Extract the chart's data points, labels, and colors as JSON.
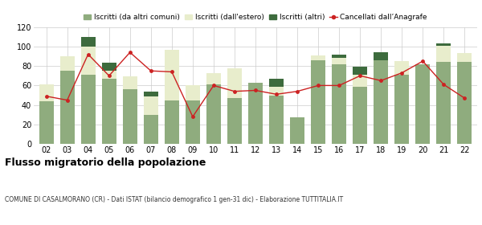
{
  "years": [
    "02",
    "03",
    "04",
    "05",
    "06",
    "07",
    "08",
    "09",
    "10",
    "11",
    "12",
    "13",
    "14",
    "15",
    "16",
    "17",
    "18",
    "19",
    "20",
    "21",
    "22"
  ],
  "iscritti_altri_comuni": [
    44,
    75,
    71,
    67,
    56,
    30,
    45,
    45,
    61,
    47,
    63,
    50,
    27,
    86,
    82,
    59,
    86,
    71,
    82,
    84,
    84
  ],
  "iscritti_estero": [
    17,
    15,
    29,
    8,
    13,
    19,
    52,
    15,
    12,
    31,
    0,
    9,
    0,
    5,
    6,
    12,
    0,
    14,
    0,
    17,
    9
  ],
  "iscritti_altri": [
    0,
    0,
    10,
    8,
    0,
    5,
    0,
    0,
    0,
    0,
    0,
    8,
    0,
    0,
    4,
    8,
    8,
    0,
    0,
    2,
    0
  ],
  "cancellati": [
    49,
    45,
    92,
    70,
    94,
    75,
    74,
    28,
    60,
    54,
    55,
    51,
    54,
    60,
    60,
    70,
    65,
    73,
    85,
    61,
    47
  ],
  "color_altri_comuni": "#8fac7e",
  "color_estero": "#e8edcc",
  "color_altri": "#3d6b3d",
  "color_cancellati": "#cc2222",
  "title": "Flusso migratorio della popolazione",
  "subtitle": "COMUNE DI CASALMORANO (CR) - Dati ISTAT (bilancio demografico 1 gen-31 dic) - Elaborazione TUTTITALIA.IT",
  "legend_labels": [
    "Iscritti (da altri comuni)",
    "Iscritti (dall'estero)",
    "Iscritti (altri)",
    "Cancellati dall’Anagrafe"
  ],
  "ylim": [
    0,
    120
  ],
  "yticks": [
    0,
    20,
    40,
    60,
    80,
    100,
    120
  ],
  "background_color": "#ffffff",
  "grid_color": "#cccccc",
  "bar_width": 0.7
}
